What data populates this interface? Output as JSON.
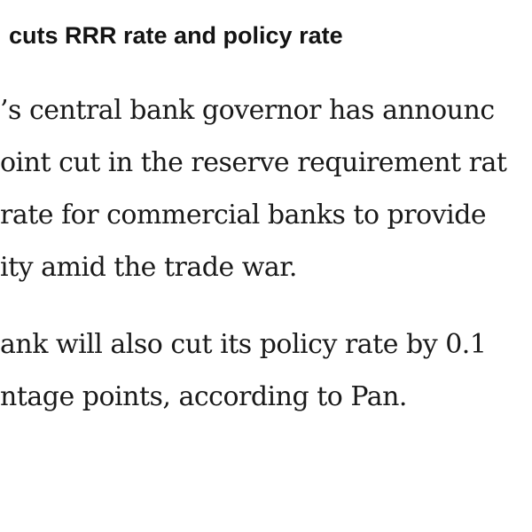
{
  "article": {
    "headline": "cuts RRR rate and policy rate",
    "paragraphs": [
      {
        "lines": [
          "’s central bank governor has announc",
          "oint cut in the reserve requirement rat",
          " rate for commercial banks to provide",
          "ity amid the trade war."
        ]
      },
      {
        "lines": [
          "ank will also cut its policy rate by 0.1",
          "ntage points, according to Pan."
        ]
      }
    ]
  }
}
